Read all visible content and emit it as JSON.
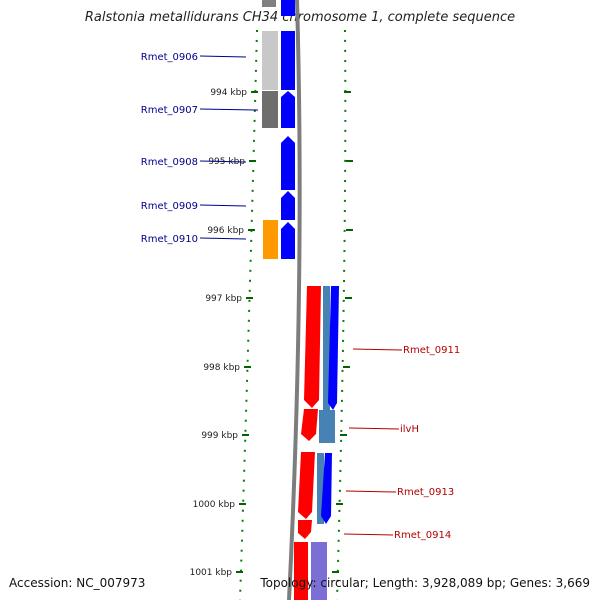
{
  "title": "Ralstonia metallidurans CH34 chromosome 1, complete sequence",
  "accession": "Accession: NC_007973",
  "topology": "Topology: circular; Length: 3,928,089 bp; Genes: 3,669",
  "ticks": [
    "994 kbp",
    "995 kbp",
    "996 kbp",
    "997 kbp",
    "998 kbp",
    "999 kbp",
    "1000 kbp",
    "1001 kbp"
  ],
  "genes_left": [
    "Rmet_0906",
    "Rmet_0907",
    "Rmet_0908",
    "Rmet_0909",
    "Rmet_0910"
  ],
  "genes_right": [
    "Rmet_0911",
    "ilvH",
    "Rmet_0913",
    "Rmet_0914"
  ],
  "colors": {
    "forward_gene": "#0000ff",
    "reverse_gene": "#ff0000",
    "orange_gene": "#ff9900",
    "left_label": "#00008b",
    "right_label": "#b40000",
    "tick": "#006400",
    "backbone": "#7f7f7f"
  }
}
